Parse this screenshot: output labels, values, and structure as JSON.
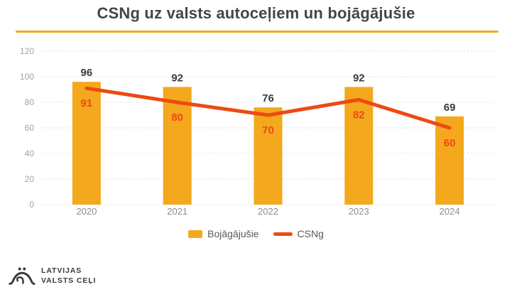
{
  "title": "CSNg uz valsts autoceļiem un bojāgājušie",
  "chart_data": {
    "type": "bar",
    "subtype": "bar+line combo",
    "categories": [
      "2020",
      "2021",
      "2022",
      "2023",
      "2024"
    ],
    "series": [
      {
        "name": "Bojāgājušie",
        "type": "bar",
        "values": [
          96,
          92,
          76,
          92,
          69
        ]
      },
      {
        "name": "CSNg",
        "type": "line",
        "values": [
          91,
          80,
          70,
          82,
          60
        ]
      }
    ],
    "title": "CSNg uz valsts autoceļiem un bojāgājušie",
    "xlabel": "",
    "ylabel": "",
    "ylim": [
      0,
      120
    ],
    "yticks": [
      0,
      20,
      40,
      60,
      80,
      100,
      120
    ],
    "grid": true,
    "grid_style": "dotted horizontal",
    "legend_position": "bottom",
    "data_labels": "bar values dark above bars, line values colored inside bars"
  },
  "legend": {
    "items": [
      {
        "label": "Bojāgājušie",
        "swatch": "bar"
      },
      {
        "label": "CSNg",
        "swatch": "line"
      }
    ]
  },
  "logo": {
    "line1": "LATVIJAS",
    "line2": "VALSTS CEĻI",
    "icon": "bridge-arch-icon"
  },
  "colors": {
    "bar": "#F4A81D",
    "line": "#ED4A12",
    "underline": "#F3A71E",
    "title_text": "#454545",
    "bar_label": "#3C3C3C",
    "line_label": "#ED4A12",
    "ytick_text": "#A2A2A2",
    "xtick_text": "#8C8C8C",
    "legend_text": "#595959",
    "gridline": "#DCDCDC",
    "logo_text": "#3A3A3A",
    "background": "#FFFFFF"
  }
}
